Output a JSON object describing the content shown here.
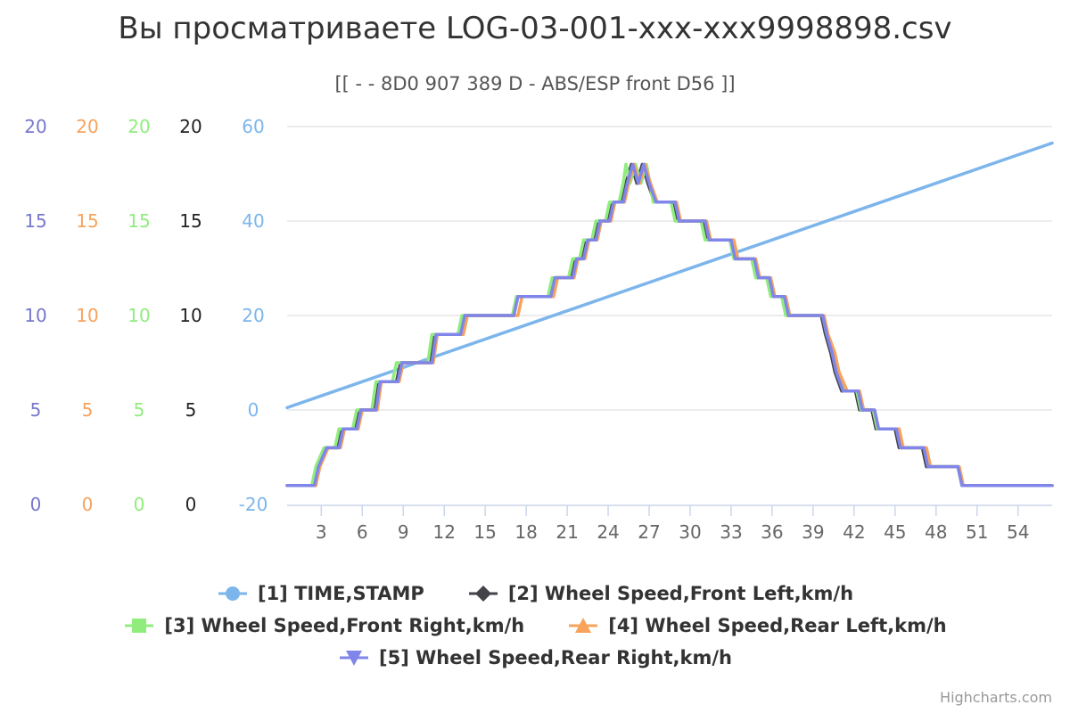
{
  "chart": {
    "title": "Вы просматриваете LOG-03-001-xxx-xxx9998898.csv",
    "subtitle": "[[ - - 8D0 907 389 D - ABS/ESP front D56 ]]",
    "credits": "Highcharts.com"
  },
  "chart_data": {
    "type": "line",
    "title": "Вы просматриваете LOG-03-001-xxx-xxx9998898.csv",
    "subtitle": "[[ - - 8D0 907 389 D - ABS/ESP front D56 ]]",
    "x_ticks": [
      3,
      6,
      9,
      12,
      15,
      18,
      21,
      24,
      27,
      30,
      33,
      36,
      39,
      42,
      45,
      48,
      51,
      54
    ],
    "xlim": [
      0.5,
      56.5
    ],
    "grid": true,
    "legend_position": "bottom-center",
    "y_axes": [
      {
        "id": "a1",
        "color": "#7777cc",
        "ticks": [
          "0",
          "5",
          "10",
          "15",
          "20"
        ],
        "range": [
          0,
          20
        ]
      },
      {
        "id": "a2",
        "color": "#f7a35c",
        "ticks": [
          "0",
          "5",
          "10",
          "15",
          "20"
        ],
        "range": [
          0,
          20
        ]
      },
      {
        "id": "a3",
        "color": "#90ed7d",
        "ticks": [
          "0",
          "5",
          "10",
          "15",
          "20"
        ],
        "range": [
          0,
          20
        ]
      },
      {
        "id": "a4",
        "color": "#222222",
        "ticks": [
          "0",
          "5",
          "10",
          "15",
          "20"
        ],
        "range": [
          0,
          20
        ]
      },
      {
        "id": "a5",
        "color": "#7cb5ec",
        "ticks": [
          "-20",
          "0",
          "20",
          "40",
          "60"
        ],
        "range": [
          -20,
          60
        ]
      }
    ],
    "series": [
      {
        "name": "[1] TIME,STAMP",
        "color": "#7cb5ec",
        "marker": "circle",
        "axis": "a5",
        "points": [
          [
            0.5,
            0.5
          ],
          [
            56.5,
            56.5
          ]
        ]
      },
      {
        "name": "[2] Wheel Speed,Front Left,km/h",
        "color": "#434348",
        "marker": "diamond",
        "axis": "a4",
        "points": [
          [
            0.5,
            1
          ],
          [
            2.4,
            1
          ],
          [
            2.7,
            2
          ],
          [
            3,
            2.5
          ],
          [
            3.3,
            3
          ],
          [
            4.2,
            3
          ],
          [
            4.5,
            4
          ],
          [
            5.5,
            4
          ],
          [
            5.8,
            5
          ],
          [
            6.9,
            5
          ],
          [
            7.2,
            6.5
          ],
          [
            8.5,
            6.5
          ],
          [
            8.8,
            7.5
          ],
          [
            11,
            7.5
          ],
          [
            11.3,
            9
          ],
          [
            13.2,
            9
          ],
          [
            13.5,
            10
          ],
          [
            17,
            10
          ],
          [
            17.3,
            11
          ],
          [
            19.8,
            11
          ],
          [
            20.1,
            12
          ],
          [
            21.3,
            12
          ],
          [
            21.6,
            13
          ],
          [
            22.1,
            13
          ],
          [
            22.4,
            14
          ],
          [
            23,
            14
          ],
          [
            23.3,
            15
          ],
          [
            24,
            15
          ],
          [
            24.3,
            16
          ],
          [
            25,
            16
          ],
          [
            25.3,
            17
          ],
          [
            25.7,
            18
          ],
          [
            26.1,
            17
          ],
          [
            26.5,
            18
          ],
          [
            26.9,
            17
          ],
          [
            27.4,
            16
          ],
          [
            28.8,
            16
          ],
          [
            29.1,
            15
          ],
          [
            31,
            15
          ],
          [
            31.3,
            14
          ],
          [
            33,
            14
          ],
          [
            33.3,
            13
          ],
          [
            34.6,
            13
          ],
          [
            34.9,
            12
          ],
          [
            35.7,
            12
          ],
          [
            36,
            11
          ],
          [
            36.8,
            11
          ],
          [
            37.1,
            10
          ],
          [
            39.6,
            10
          ],
          [
            39.9,
            9
          ],
          [
            40.3,
            8
          ],
          [
            40.6,
            7
          ],
          [
            41.1,
            6
          ],
          [
            42.1,
            6
          ],
          [
            42.4,
            5
          ],
          [
            43.3,
            5
          ],
          [
            43.6,
            4
          ],
          [
            45,
            4
          ],
          [
            45.3,
            3
          ],
          [
            47,
            3
          ],
          [
            47.3,
            2
          ],
          [
            49.6,
            2
          ],
          [
            49.9,
            1
          ],
          [
            56.5,
            1
          ]
        ]
      },
      {
        "name": "[3] Wheel Speed,Front Right,km/h",
        "color": "#90ed7d",
        "marker": "square",
        "axis": "a3",
        "points": [
          [
            0.5,
            1
          ],
          [
            2.3,
            1
          ],
          [
            2.6,
            2
          ],
          [
            2.9,
            2.5
          ],
          [
            3.2,
            3
          ],
          [
            4,
            3
          ],
          [
            4.3,
            4
          ],
          [
            5.3,
            4
          ],
          [
            5.6,
            5
          ],
          [
            6.7,
            5
          ],
          [
            7,
            6.5
          ],
          [
            8.2,
            6.5
          ],
          [
            8.5,
            7.5
          ],
          [
            10.8,
            7.5
          ],
          [
            11.1,
            9
          ],
          [
            13,
            9
          ],
          [
            13.3,
            10
          ],
          [
            17,
            10
          ],
          [
            17.3,
            11
          ],
          [
            19.6,
            11
          ],
          [
            19.9,
            12
          ],
          [
            21.1,
            12
          ],
          [
            21.4,
            13
          ],
          [
            21.9,
            13
          ],
          [
            22.2,
            14
          ],
          [
            22.8,
            14
          ],
          [
            23.1,
            15
          ],
          [
            23.8,
            15
          ],
          [
            24.1,
            16
          ],
          [
            24.8,
            16
          ],
          [
            25.1,
            17
          ],
          [
            25.3,
            18
          ],
          [
            25.6,
            17
          ],
          [
            26,
            18
          ],
          [
            26.4,
            17
          ],
          [
            26.8,
            18
          ],
          [
            27.3,
            16
          ],
          [
            28.6,
            16
          ],
          [
            28.9,
            15
          ],
          [
            30.8,
            15
          ],
          [
            31.1,
            14
          ],
          [
            32.9,
            14
          ],
          [
            33.2,
            13
          ],
          [
            34.5,
            13
          ],
          [
            34.8,
            12
          ],
          [
            35.6,
            12
          ],
          [
            35.9,
            11
          ],
          [
            36.7,
            11
          ],
          [
            37,
            10
          ],
          [
            39.7,
            10
          ],
          [
            40,
            9
          ],
          [
            40.5,
            8
          ],
          [
            40.8,
            7
          ],
          [
            41.3,
            6
          ],
          [
            42.2,
            6
          ],
          [
            42.5,
            5
          ],
          [
            43.4,
            5
          ],
          [
            43.7,
            4
          ],
          [
            45.2,
            4
          ],
          [
            45.5,
            3
          ],
          [
            47.2,
            3
          ],
          [
            47.5,
            2
          ],
          [
            49.6,
            2
          ],
          [
            49.9,
            1
          ],
          [
            56.5,
            1
          ]
        ]
      },
      {
        "name": "[4] Wheel Speed,Rear Left,km/h",
        "color": "#f7a35c",
        "marker": "triangle",
        "axis": "a2",
        "points": [
          [
            0.5,
            1
          ],
          [
            2.6,
            1
          ],
          [
            2.9,
            2
          ],
          [
            3.2,
            2.5
          ],
          [
            3.5,
            3
          ],
          [
            4.4,
            3
          ],
          [
            4.7,
            4
          ],
          [
            5.7,
            4
          ],
          [
            6,
            5
          ],
          [
            7.1,
            5
          ],
          [
            7.4,
            6.5
          ],
          [
            8.7,
            6.5
          ],
          [
            9,
            7.5
          ],
          [
            11.2,
            7.5
          ],
          [
            11.5,
            9
          ],
          [
            13.4,
            9
          ],
          [
            13.7,
            10
          ],
          [
            17.4,
            10
          ],
          [
            17.7,
            11
          ],
          [
            20,
            11
          ],
          [
            20.3,
            12
          ],
          [
            21.5,
            12
          ],
          [
            21.8,
            13
          ],
          [
            22.3,
            13
          ],
          [
            22.6,
            14
          ],
          [
            23.2,
            14
          ],
          [
            23.5,
            15
          ],
          [
            24.2,
            15
          ],
          [
            24.5,
            16
          ],
          [
            25.2,
            16
          ],
          [
            25.5,
            17
          ],
          [
            25.9,
            18
          ],
          [
            26.3,
            17
          ],
          [
            26.7,
            18
          ],
          [
            27.1,
            17
          ],
          [
            27.6,
            16
          ],
          [
            29,
            16
          ],
          [
            29.3,
            15
          ],
          [
            31.2,
            15
          ],
          [
            31.5,
            14
          ],
          [
            33.2,
            14
          ],
          [
            33.5,
            13
          ],
          [
            34.8,
            13
          ],
          [
            35.1,
            12
          ],
          [
            35.9,
            12
          ],
          [
            36.2,
            11
          ],
          [
            37,
            11
          ],
          [
            37.3,
            10
          ],
          [
            39.8,
            10
          ],
          [
            40.1,
            9
          ],
          [
            40.6,
            8
          ],
          [
            40.9,
            7
          ],
          [
            41.5,
            6
          ],
          [
            42.4,
            6
          ],
          [
            42.7,
            5
          ],
          [
            43.5,
            5
          ],
          [
            43.8,
            4
          ],
          [
            45.3,
            4
          ],
          [
            45.6,
            3
          ],
          [
            47.3,
            3
          ],
          [
            47.6,
            2
          ],
          [
            49.7,
            2
          ],
          [
            50,
            1
          ],
          [
            56.5,
            1
          ]
        ]
      },
      {
        "name": "[5] Wheel Speed,Rear Right,km/h",
        "color": "#8085e9",
        "marker": "triangle-down",
        "axis": "a1",
        "points": [
          [
            0.5,
            1
          ],
          [
            2.5,
            1
          ],
          [
            2.8,
            2
          ],
          [
            3.1,
            2.5
          ],
          [
            3.4,
            3
          ],
          [
            4.3,
            3
          ],
          [
            4.6,
            4
          ],
          [
            5.6,
            4
          ],
          [
            5.9,
            5
          ],
          [
            7,
            5
          ],
          [
            7.3,
            6.5
          ],
          [
            8.6,
            6.5
          ],
          [
            8.9,
            7.5
          ],
          [
            11.1,
            7.5
          ],
          [
            11.4,
            9
          ],
          [
            13.2,
            9
          ],
          [
            13.5,
            10
          ],
          [
            17.1,
            10
          ],
          [
            17.4,
            11
          ],
          [
            19.8,
            11
          ],
          [
            20.1,
            12
          ],
          [
            21.4,
            12
          ],
          [
            21.7,
            13
          ],
          [
            22.2,
            13
          ],
          [
            22.5,
            14
          ],
          [
            23.1,
            14
          ],
          [
            23.4,
            15
          ],
          [
            24.1,
            15
          ],
          [
            24.4,
            16
          ],
          [
            25.1,
            16
          ],
          [
            25.4,
            17
          ],
          [
            25.8,
            18
          ],
          [
            26.2,
            17
          ],
          [
            26.6,
            18
          ],
          [
            27,
            17
          ],
          [
            27.5,
            16
          ],
          [
            28.9,
            16
          ],
          [
            29.2,
            15
          ],
          [
            31.1,
            15
          ],
          [
            31.4,
            14
          ],
          [
            33,
            14
          ],
          [
            33.3,
            13
          ],
          [
            34.7,
            13
          ],
          [
            35,
            12
          ],
          [
            35.8,
            12
          ],
          [
            36.1,
            11
          ],
          [
            36.9,
            11
          ],
          [
            37.2,
            10
          ],
          [
            39.7,
            10
          ],
          [
            40,
            9
          ],
          [
            40.4,
            8
          ],
          [
            40.7,
            7
          ],
          [
            41.2,
            6
          ],
          [
            42.3,
            6
          ],
          [
            42.6,
            5
          ],
          [
            43.5,
            5
          ],
          [
            43.8,
            4
          ],
          [
            45.1,
            4
          ],
          [
            45.4,
            3
          ],
          [
            47.1,
            3
          ],
          [
            47.4,
            2
          ],
          [
            49.6,
            2
          ],
          [
            49.9,
            1
          ],
          [
            56.5,
            1
          ]
        ]
      }
    ]
  }
}
